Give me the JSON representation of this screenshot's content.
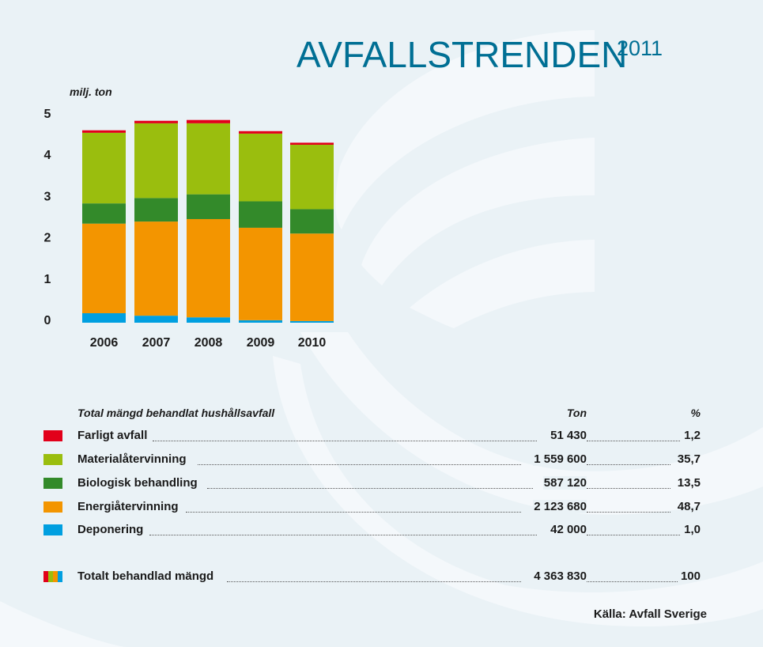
{
  "header": {
    "title": "AVFALLSTRENDEN",
    "year": "2011"
  },
  "colors": {
    "farligt": "#e2001a",
    "material": "#9abe0e",
    "biologisk": "#338a2a",
    "energi": "#f39500",
    "deponering": "#009fe0",
    "title": "#006f94"
  },
  "chart_data": {
    "type": "bar",
    "stacked": true,
    "title": "",
    "xlabel": "",
    "ylabel": "milj. ton",
    "ylim": [
      0,
      5
    ],
    "yticks": [
      "0",
      "1",
      "2",
      "3",
      "4",
      "5"
    ],
    "grid": false,
    "categories": [
      "2006",
      "2007",
      "2008",
      "2009",
      "2010"
    ],
    "series": [
      {
        "name": "Deponering",
        "color": "#009fe0",
        "values": [
          0.23,
          0.17,
          0.13,
          0.06,
          0.04
        ]
      },
      {
        "name": "Energiåtervinning",
        "color": "#f39500",
        "values": [
          2.17,
          2.28,
          2.38,
          2.24,
          2.12
        ]
      },
      {
        "name": "Biologisk behandling",
        "color": "#338a2a",
        "values": [
          0.49,
          0.57,
          0.6,
          0.64,
          0.59
        ]
      },
      {
        "name": "Materialåtervinning",
        "color": "#9abe0e",
        "values": [
          1.71,
          1.81,
          1.72,
          1.64,
          1.56
        ]
      },
      {
        "name": "Farligt avfall",
        "color": "#e2001a",
        "values": [
          0.06,
          0.06,
          0.08,
          0.06,
          0.05
        ]
      }
    ]
  },
  "table": {
    "heading": "Total mängd behandlat hushållsavfall",
    "col_ton": "Ton",
    "col_pct": "%",
    "rows": [
      {
        "label": "Farligt avfall",
        "ton": "51 430",
        "pct": "1,2",
        "color": "#e2001a"
      },
      {
        "label": "Materialåtervinning",
        "ton": "1 559 600",
        "pct": "35,7",
        "color": "#9abe0e"
      },
      {
        "label": "Biologisk behandling",
        "ton": "587 120",
        "pct": "13,5",
        "color": "#338a2a"
      },
      {
        "label": "Energiåtervinning",
        "ton": "2 123 680",
        "pct": "48,7",
        "color": "#f39500"
      },
      {
        "label": "Deponering",
        "ton": "42 000",
        "pct": "1,0",
        "color": "#009fe0"
      }
    ],
    "total": {
      "label": "Totalt behandlad mängd",
      "ton": "4 363 830",
      "pct": "100"
    }
  },
  "source": "Källa: Avfall Sverige"
}
